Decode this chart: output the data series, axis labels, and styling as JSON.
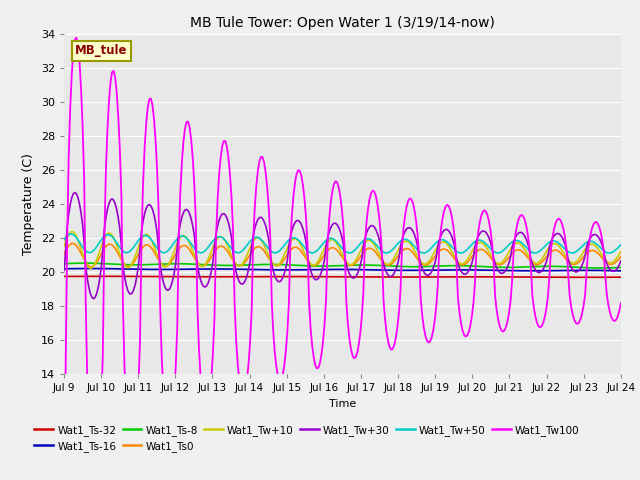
{
  "title": "MB Tule Tower: Open Water 1 (3/19/14-now)",
  "xlabel": "Time",
  "ylabel": "Temperature (C)",
  "xlim": [
    0,
    15
  ],
  "ylim": [
    14,
    34
  ],
  "yticks": [
    14,
    16,
    18,
    20,
    22,
    24,
    26,
    28,
    30,
    32,
    34
  ],
  "xtick_labels": [
    "Jul 9",
    "Jul 10",
    "Jul 11",
    "Jul 12",
    "Jul 13",
    "Jul 14",
    "Jul 15",
    "Jul 16",
    "Jul 17",
    "Jul 18",
    "Jul 19",
    "Jul 20",
    "Jul 21",
    "Jul 22",
    "Jul 23",
    "Jul 24"
  ],
  "series_colors": {
    "Wat1_Ts-32": "#cc0000",
    "Wat1_Ts-16": "#0000bb",
    "Wat1_Ts-8": "#00cc00",
    "Wat1_Ts0": "#ff8800",
    "Wat1_Tw+10": "#cccc00",
    "Wat1_Tw+30": "#9900cc",
    "Wat1_Tw+50": "#00cccc",
    "Wat1_Tw100": "#ff00ff"
  },
  "legend_order": [
    "Wat1_Ts-32",
    "Wat1_Ts-16",
    "Wat1_Ts-8",
    "Wat1_Ts0",
    "Wat1_Tw+10",
    "Wat1_Tw+30",
    "Wat1_Tw+50",
    "Wat1_Tw100"
  ],
  "box_label": "MB_tule",
  "bg_color": "#e8e8e8",
  "fig_bg": "#f0f0f0"
}
